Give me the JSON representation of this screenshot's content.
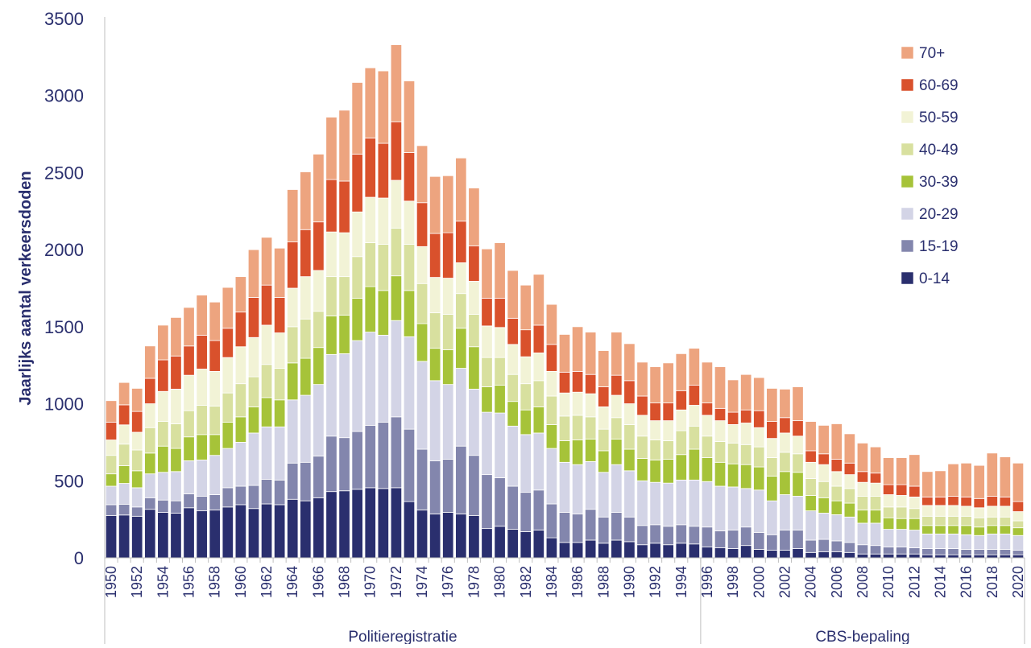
{
  "chart_data": {
    "type": "bar",
    "stacked": true,
    "ylabel": "Jaarlijks aantal verkeersdoden",
    "xlabel": "",
    "ylim": [
      0,
      3500
    ],
    "yticks": [
      0,
      500,
      1000,
      1500,
      2000,
      2500,
      3000,
      3500
    ],
    "grid": false,
    "legend_position": "top-right",
    "categories": [
      "1950",
      "1951",
      "1952",
      "1953",
      "1954",
      "1955",
      "1956",
      "1957",
      "1958",
      "1959",
      "1960",
      "1961",
      "1962",
      "1963",
      "1964",
      "1965",
      "1966",
      "1967",
      "1968",
      "1969",
      "1970",
      "1971",
      "1972",
      "1973",
      "1974",
      "1975",
      "1976",
      "1977",
      "1978",
      "1979",
      "1980",
      "1981",
      "1982",
      "1983",
      "1984",
      "1985",
      "1986",
      "1987",
      "1988",
      "1989",
      "1990",
      "1991",
      "1992",
      "1993",
      "1994",
      "1995",
      "1996",
      "1997",
      "1998",
      "1999",
      "2000",
      "2001",
      "2002",
      "2003",
      "2004",
      "2005",
      "2006",
      "2007",
      "2008",
      "2009",
      "2010",
      "2011",
      "2012",
      "2013",
      "2014",
      "2015",
      "2016",
      "2017",
      "2018",
      "2019",
      "2020"
    ],
    "tick_labels": [
      "1950",
      "1952",
      "1954",
      "1956",
      "1958",
      "1960",
      "1962",
      "1964",
      "1966",
      "1968",
      "1970",
      "1972",
      "1974",
      "1976",
      "1978",
      "1980",
      "1982",
      "1984",
      "1986",
      "1988",
      "1990",
      "1992",
      "1994",
      "1996",
      "1998",
      "2000",
      "2002",
      "2004",
      "2006",
      "2008",
      "2010",
      "2012",
      "2014",
      "2016",
      "2018",
      "2020"
    ],
    "groups": [
      {
        "label": "Politieregistratie",
        "from": "1950",
        "to": "1995"
      },
      {
        "label": "CBS-bepaling",
        "from": "1996",
        "to": "2020"
      }
    ],
    "series": [
      {
        "name": "0-14",
        "color": "#2a2f6e",
        "values": [
          275,
          278,
          270,
          315,
          295,
          290,
          325,
          305,
          310,
          330,
          345,
          320,
          350,
          345,
          380,
          370,
          390,
          430,
          435,
          445,
          455,
          450,
          455,
          365,
          310,
          285,
          295,
          285,
          275,
          190,
          205,
          185,
          170,
          180,
          130,
          100,
          100,
          115,
          95,
          115,
          105,
          85,
          95,
          85,
          95,
          90,
          70,
          65,
          60,
          80,
          55,
          50,
          50,
          60,
          35,
          40,
          40,
          35,
          25,
          25,
          25,
          25,
          25,
          20,
          20,
          20,
          20,
          20,
          20,
          20,
          20
        ]
      },
      {
        "name": "15-19",
        "color": "#8386ad",
        "values": [
          70,
          70,
          60,
          75,
          80,
          80,
          90,
          95,
          100,
          125,
          120,
          150,
          160,
          160,
          235,
          250,
          270,
          360,
          345,
          375,
          405,
          430,
          460,
          470,
          395,
          345,
          345,
          440,
          390,
          350,
          315,
          280,
          255,
          260,
          220,
          195,
          185,
          200,
          170,
          180,
          160,
          125,
          120,
          120,
          120,
          115,
          130,
          110,
          120,
          120,
          110,
          100,
          130,
          120,
          80,
          80,
          70,
          65,
          60,
          55,
          45,
          45,
          40,
          40,
          40,
          40,
          35,
          35,
          35,
          35,
          30
        ]
      },
      {
        "name": "20-29",
        "color": "#d3d4e6",
        "values": [
          120,
          135,
          125,
          155,
          180,
          190,
          215,
          235,
          255,
          255,
          285,
          340,
          340,
          345,
          410,
          435,
          465,
          530,
          545,
          590,
          605,
          565,
          625,
          600,
          570,
          520,
          485,
          505,
          430,
          405,
          420,
          390,
          375,
          370,
          360,
          325,
          320,
          310,
          290,
          310,
          300,
          290,
          275,
          280,
          290,
          300,
          295,
          290,
          280,
          250,
          275,
          220,
          230,
          220,
          190,
          170,
          170,
          165,
          140,
          145,
          115,
          115,
          115,
          95,
          95,
          95,
          95,
          90,
          100,
          100,
          95
        ]
      },
      {
        "name": "30-39",
        "color": "#a6c339",
        "values": [
          80,
          115,
          110,
          135,
          170,
          150,
          155,
          165,
          135,
          170,
          165,
          170,
          190,
          175,
          240,
          240,
          240,
          250,
          250,
          275,
          295,
          290,
          290,
          300,
          245,
          210,
          225,
          260,
          275,
          165,
          180,
          160,
          160,
          170,
          155,
          140,
          160,
          145,
          140,
          165,
          140,
          145,
          145,
          155,
          165,
          200,
          155,
          155,
          150,
          155,
          150,
          160,
          150,
          155,
          100,
          100,
          90,
          90,
          85,
          85,
          75,
          70,
          75,
          55,
          55,
          55,
          60,
          55,
          55,
          55,
          50
        ]
      },
      {
        "name": "40-49",
        "color": "#d8e09f",
        "values": [
          120,
          140,
          135,
          165,
          160,
          160,
          170,
          190,
          185,
          190,
          215,
          195,
          215,
          205,
          235,
          255,
          235,
          255,
          250,
          270,
          285,
          300,
          310,
          300,
          260,
          230,
          230,
          225,
          210,
          190,
          180,
          175,
          170,
          170,
          185,
          160,
          160,
          145,
          140,
          140,
          160,
          145,
          130,
          120,
          155,
          150,
          140,
          135,
          135,
          130,
          130,
          120,
          125,
          120,
          110,
          105,
          95,
          95,
          90,
          90,
          70,
          75,
          65,
          60,
          60,
          60,
          60,
          60,
          55,
          55,
          45
        ]
      },
      {
        "name": "50-59",
        "color": "#f2f3d6",
        "values": [
          100,
          125,
          115,
          155,
          195,
          225,
          230,
          235,
          225,
          230,
          240,
          255,
          255,
          230,
          250,
          275,
          265,
          290,
          285,
          290,
          295,
          300,
          310,
          280,
          240,
          230,
          235,
          200,
          215,
          205,
          195,
          195,
          175,
          180,
          160,
          150,
          150,
          150,
          145,
          145,
          135,
          135,
          125,
          130,
          135,
          135,
          135,
          135,
          120,
          140,
          125,
          125,
          125,
          115,
          105,
          110,
          95,
          90,
          90,
          85,
          80,
          75,
          75,
          70,
          70,
          70,
          65,
          65,
          70,
          70,
          60
        ]
      },
      {
        "name": "60-69",
        "color": "#d9512c",
        "values": [
          115,
          130,
          135,
          165,
          205,
          215,
          190,
          220,
          200,
          190,
          225,
          260,
          260,
          230,
          300,
          305,
          315,
          340,
          335,
          375,
          385,
          355,
          380,
          315,
          285,
          285,
          295,
          270,
          230,
          180,
          190,
          170,
          175,
          180,
          175,
          135,
          135,
          125,
          130,
          130,
          150,
          125,
          115,
          115,
          125,
          130,
          80,
          80,
          80,
          85,
          110,
          110,
          100,
          100,
          75,
          70,
          80,
          75,
          70,
          65,
          65,
          70,
          70,
          55,
          55,
          60,
          60,
          60,
          65,
          60,
          65
        ]
      },
      {
        "name": "70+",
        "color": "#eda47f",
        "values": [
          140,
          145,
          150,
          210,
          225,
          250,
          250,
          260,
          250,
          265,
          230,
          310,
          310,
          320,
          340,
          375,
          440,
          405,
          460,
          465,
          455,
          470,
          500,
          465,
          370,
          370,
          370,
          410,
          375,
          320,
          360,
          310,
          290,
          330,
          260,
          245,
          290,
          275,
          235,
          280,
          240,
          220,
          235,
          260,
          240,
          240,
          265,
          270,
          210,
          230,
          215,
          215,
          185,
          220,
          190,
          185,
          230,
          190,
          185,
          170,
          175,
          175,
          205,
          165,
          170,
          210,
          220,
          215,
          280,
          260,
          250
        ]
      }
    ]
  }
}
